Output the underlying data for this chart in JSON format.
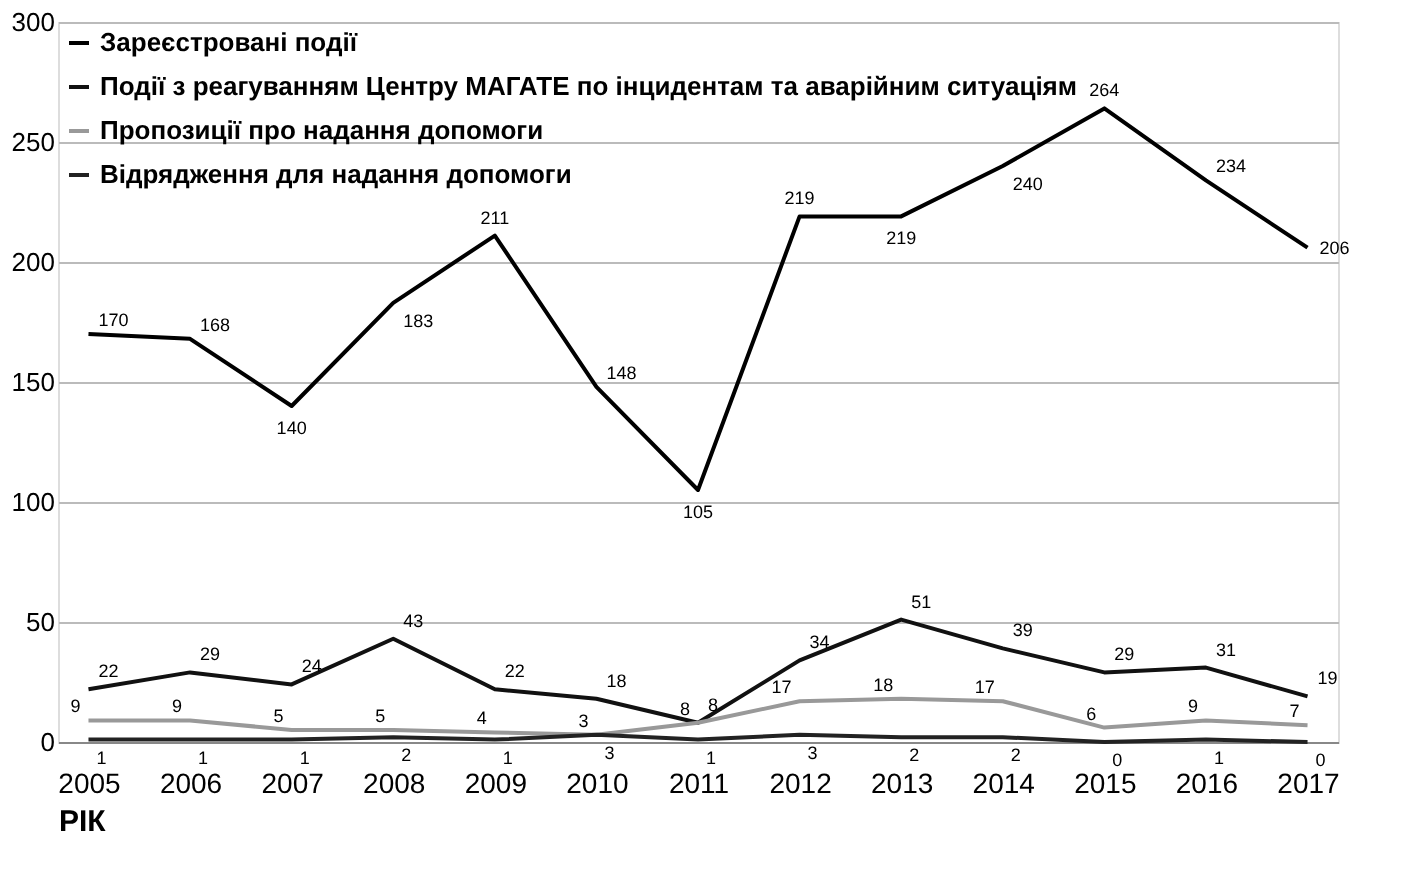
{
  "chart_data": {
    "type": "line",
    "xlabel": "РІК",
    "categories": [
      "2005",
      "2006",
      "2007",
      "2008",
      "2009",
      "2010",
      "2011",
      "2012",
      "2013",
      "2014",
      "2015",
      "2016",
      "2017"
    ],
    "series": [
      {
        "name": "Зареєстровані події",
        "color": "#000000",
        "values": [
          170,
          168,
          140,
          183,
          211,
          148,
          105,
          219,
          219,
          240,
          264,
          234,
          206
        ]
      },
      {
        "name": "Події з реагуванням Центру МАГАТЕ по інцидентам та аварійним ситуаціям",
        "color": "#111111",
        "values": [
          22,
          29,
          24,
          43,
          22,
          18,
          8,
          34,
          51,
          39,
          29,
          31,
          19
        ]
      },
      {
        "name": "Пропозиції про надання допомоги",
        "color": "#999999",
        "values": [
          9,
          9,
          5,
          5,
          4,
          3,
          8,
          17,
          18,
          17,
          6,
          9,
          7
        ]
      },
      {
        "name": "Відрядження для надання допомоги",
        "color": "#222222",
        "values": [
          1,
          1,
          1,
          2,
          1,
          3,
          1,
          3,
          2,
          2,
          0,
          1,
          0
        ]
      }
    ],
    "ylim": [
      0,
      300
    ],
    "yticks": [
      0,
      50,
      100,
      150,
      200,
      250,
      300
    ],
    "grid": "y",
    "legend": "top left",
    "data_labels": true,
    "marker": "none",
    "line_style": "solid"
  }
}
